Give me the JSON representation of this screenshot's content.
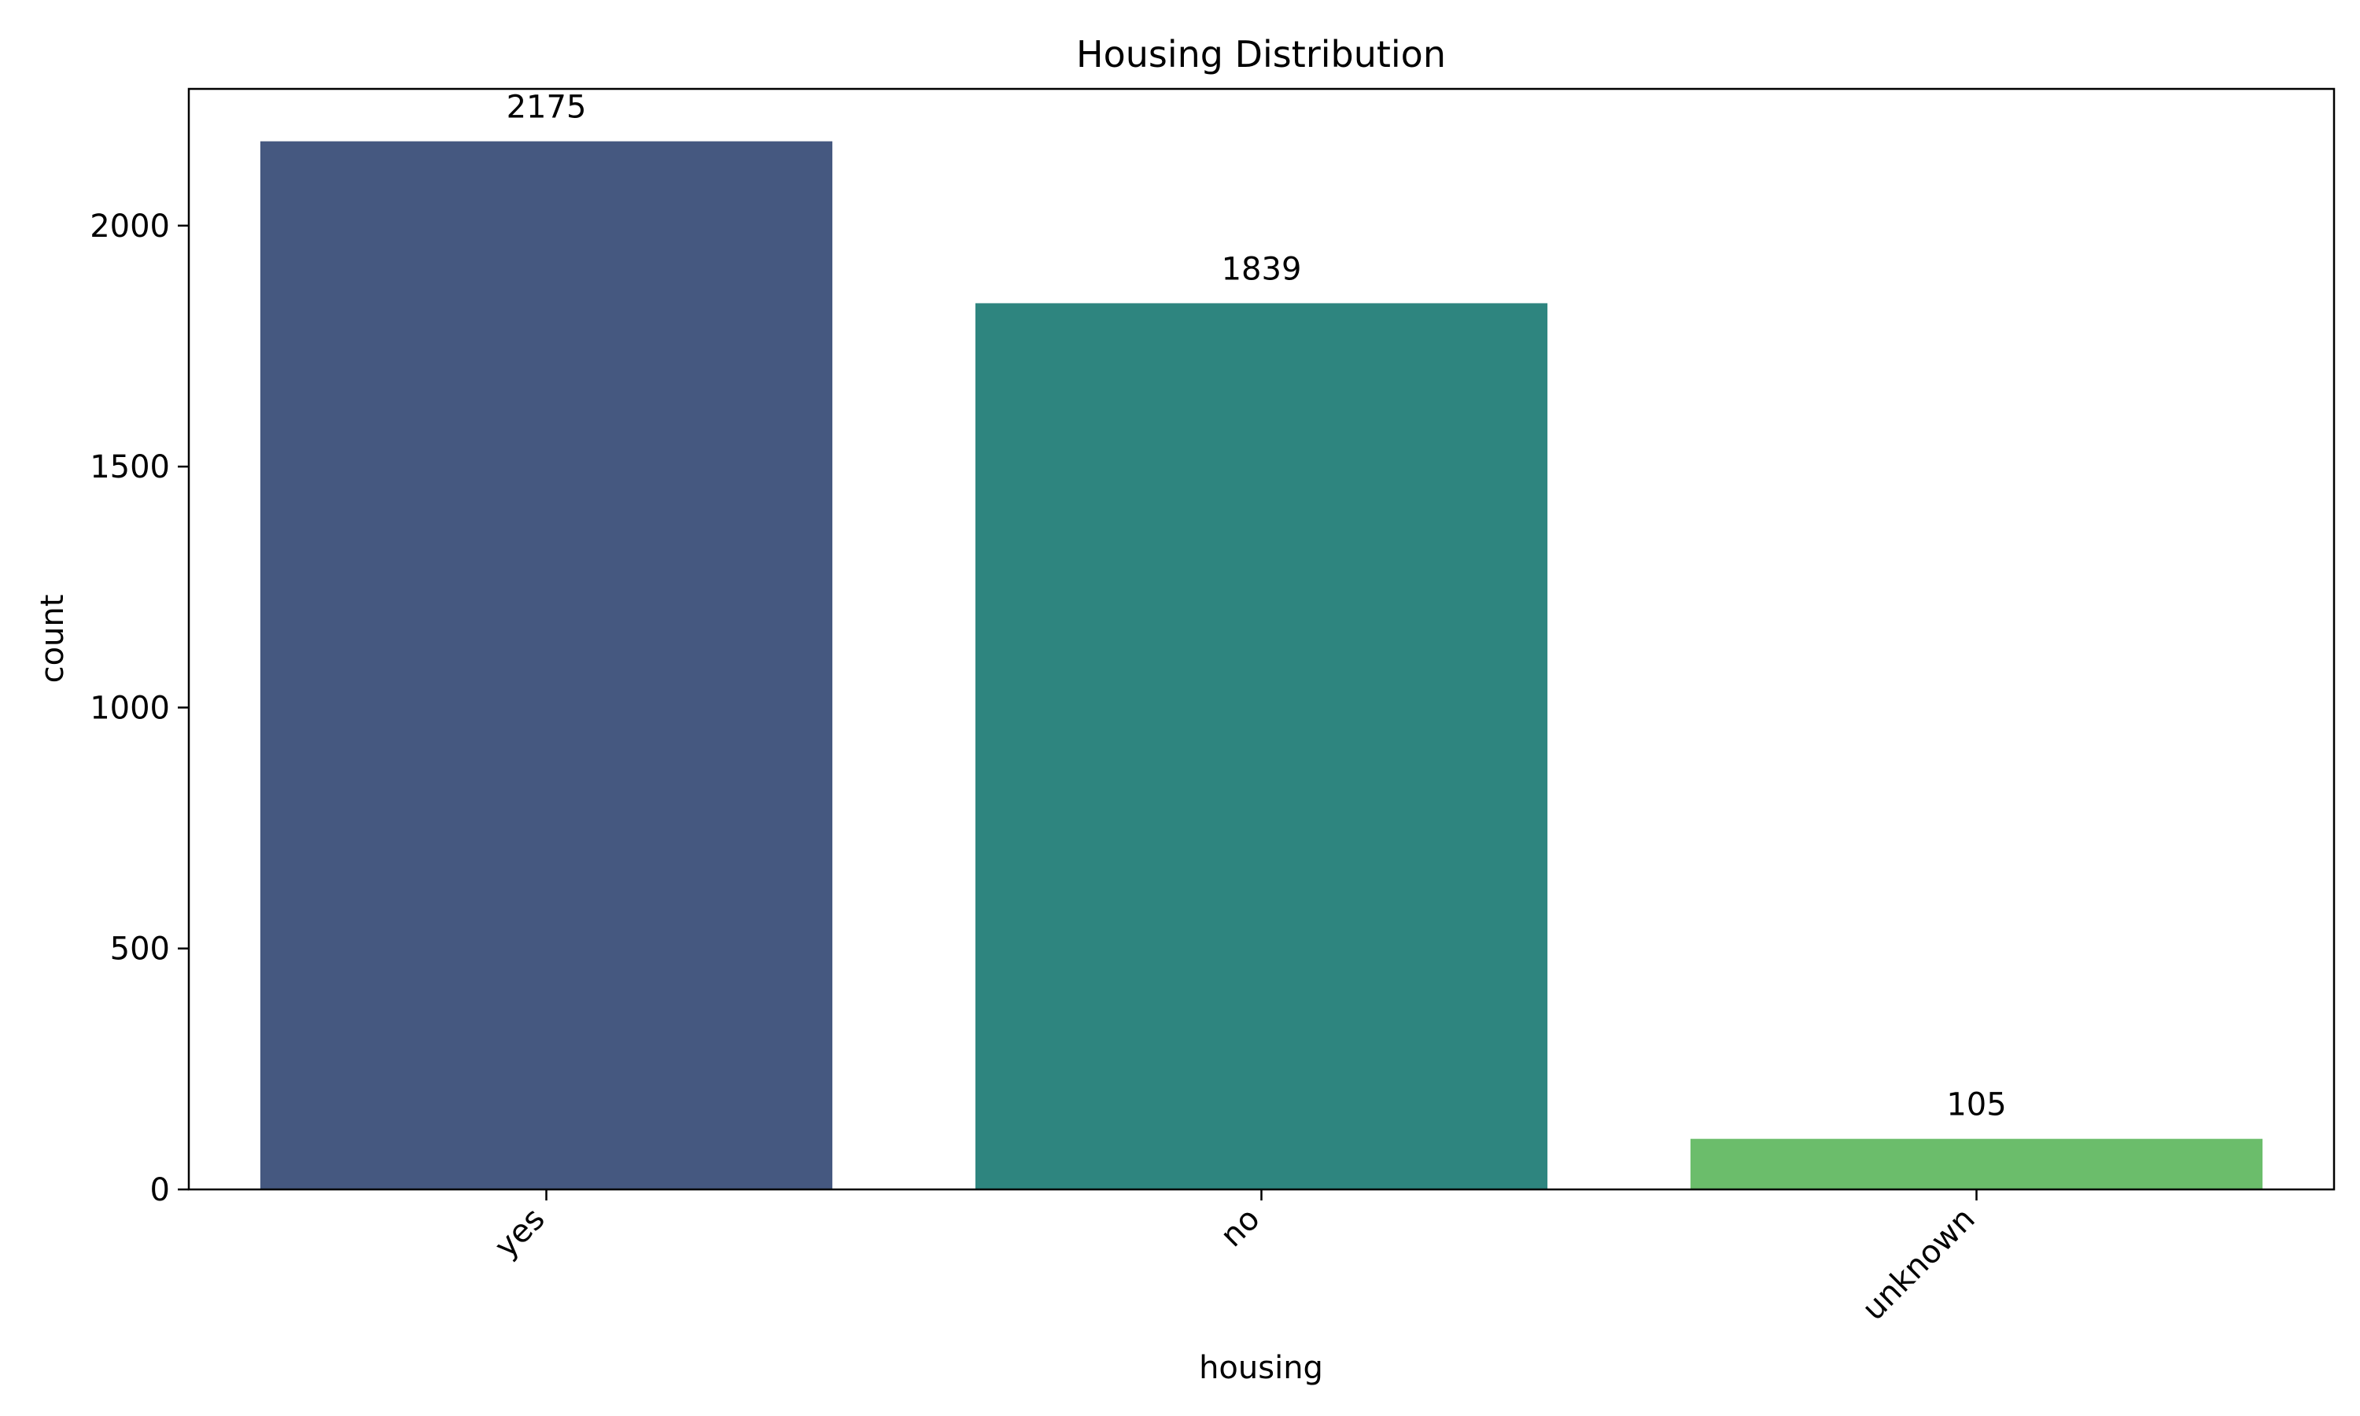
{
  "chart_data": {
    "type": "bar",
    "title": "Housing Distribution",
    "xlabel": "housing",
    "ylabel": "count",
    "categories": [
      "yes",
      "no",
      "unknown"
    ],
    "values": [
      2175,
      1839,
      105
    ],
    "value_labels": [
      "2175",
      "1839",
      "105"
    ],
    "colors": [
      "#455880",
      "#2E857F",
      "#6BBD6B"
    ],
    "ylim": [
      0,
      2283.75
    ],
    "yticks": [
      0,
      500,
      1000,
      1500,
      2000
    ],
    "ytick_labels": [
      "0",
      "500",
      "1000",
      "1500",
      "2000"
    ],
    "grid": false,
    "legend": "none",
    "xtick_rotation": 45
  }
}
